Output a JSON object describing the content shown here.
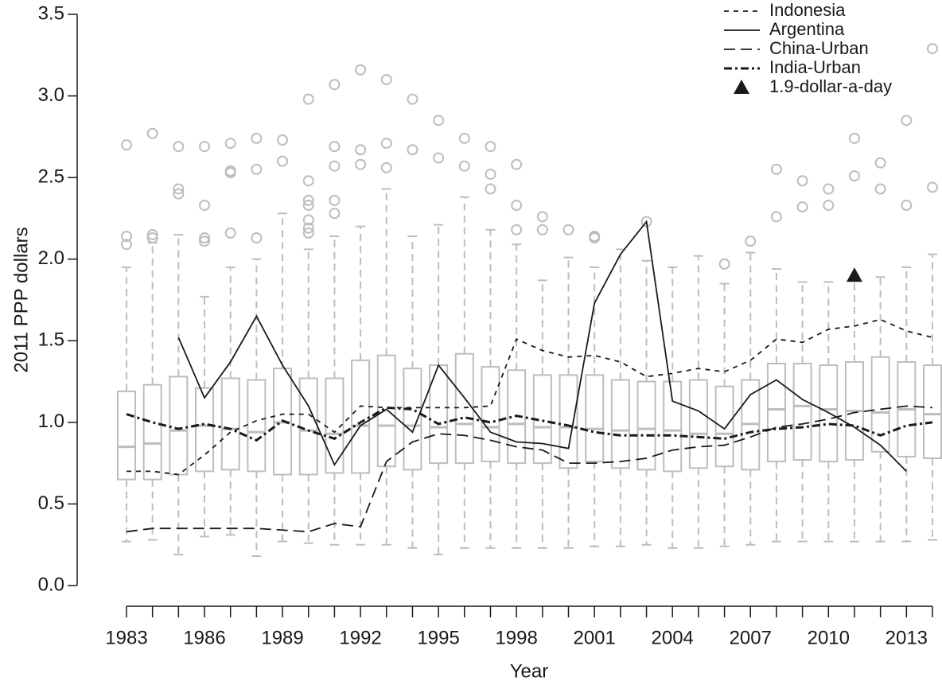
{
  "chart_data": {
    "type": "boxplot",
    "xlabel": "Year",
    "ylabel": "2011 PPP dollars",
    "xlim": [
      1983,
      2014
    ],
    "ylim": [
      0,
      3.5
    ],
    "xticks": [
      1983,
      1986,
      1989,
      1992,
      1995,
      1998,
      2001,
      2004,
      2007,
      2010,
      2013
    ],
    "yticks": [
      {
        "value": 0,
        "label": "0.0"
      },
      0.5,
      {
        "value": 1,
        "label": "1.0"
      },
      1.5,
      {
        "value": 2,
        "label": "2.0"
      },
      2.5,
      {
        "value": 3,
        "label": "3.0"
      },
      3.5
    ],
    "x": [
      1983,
      1984,
      1985,
      1986,
      1987,
      1988,
      1989,
      1990,
      1991,
      1992,
      1993,
      1994,
      1995,
      1996,
      1997,
      1998,
      1999,
      2000,
      2001,
      2002,
      2003,
      2004,
      2005,
      2006,
      2007,
      2008,
      2009,
      2010,
      2011,
      2012,
      2013,
      2014
    ],
    "boxes": {
      "color": "#bdbdbd",
      "whisker_low": [
        0.27,
        0.28,
        0.19,
        0.3,
        0.31,
        0.18,
        0.27,
        0.26,
        0.25,
        0.25,
        0.25,
        0.23,
        0.19,
        0.23,
        0.23,
        0.23,
        0.23,
        0.23,
        0.24,
        0.24,
        0.25,
        0.23,
        0.23,
        0.24,
        0.25,
        0.27,
        0.27,
        0.27,
        0.27,
        0.27,
        0.27,
        0.28
      ],
      "q1": [
        0.65,
        0.65,
        0.68,
        0.7,
        0.71,
        0.7,
        0.68,
        0.68,
        0.69,
        0.69,
        0.73,
        0.71,
        0.75,
        0.75,
        0.76,
        0.75,
        0.75,
        0.72,
        0.76,
        0.72,
        0.71,
        0.7,
        0.72,
        0.73,
        0.71,
        0.76,
        0.77,
        0.76,
        0.77,
        0.82,
        0.79,
        0.78
      ],
      "median": [
        0.85,
        0.87,
        0.95,
        0.98,
        0.96,
        0.94,
        1.0,
        0.95,
        0.93,
        0.98,
        0.98,
        0.98,
        0.97,
        0.99,
        0.97,
        0.99,
        0.97,
        0.97,
        0.96,
        0.95,
        0.96,
        0.95,
        0.93,
        0.93,
        0.99,
        1.08,
        1.1,
        1.08,
        1.07,
        1.06,
        1.08,
        1.05
      ],
      "q3": [
        1.19,
        1.23,
        1.28,
        1.21,
        1.27,
        1.26,
        1.33,
        1.27,
        1.27,
        1.38,
        1.41,
        1.33,
        1.35,
        1.42,
        1.34,
        1.32,
        1.29,
        1.29,
        1.29,
        1.26,
        1.25,
        1.25,
        1.26,
        1.22,
        1.26,
        1.36,
        1.36,
        1.35,
        1.37,
        1.4,
        1.37,
        1.35
      ],
      "whisker_high": [
        1.95,
        2.1,
        2.15,
        1.77,
        1.95,
        2.0,
        2.28,
        2.06,
        2.14,
        2.2,
        2.43,
        2.14,
        2.21,
        2.38,
        2.18,
        2.09,
        1.87,
        2.01,
        1.95,
        2.06,
        1.99,
        1.95,
        2.02,
        1.85,
        2.04,
        1.94,
        1.86,
        1.86,
        1.9,
        1.89,
        1.95,
        2.03
      ],
      "outliers": [
        [
          2.09,
          2.14,
          2.7
        ],
        [
          2.13,
          2.15,
          2.77
        ],
        [
          2.4,
          2.43,
          2.69
        ],
        [
          2.11,
          2.13,
          2.33,
          2.69
        ],
        [
          2.16,
          2.53,
          2.54,
          2.71
        ],
        [
          2.13,
          2.55,
          2.74
        ],
        [
          2.6,
          2.73
        ],
        [
          2.16,
          2.19,
          2.24,
          2.33,
          2.36,
          2.48,
          2.98
        ],
        [
          2.28,
          2.36,
          2.57,
          2.69,
          3.07
        ],
        [
          2.58,
          2.67,
          3.16
        ],
        [
          2.56,
          2.71,
          3.1
        ],
        [
          2.67,
          2.98
        ],
        [
          2.62,
          2.85
        ],
        [
          2.57,
          2.74
        ],
        [
          2.43,
          2.52,
          2.69
        ],
        [
          2.18,
          2.33,
          2.58
        ],
        [
          2.18,
          2.26
        ],
        [
          2.18
        ],
        [
          2.13,
          2.14
        ],
        [],
        [
          2.23
        ],
        [],
        [],
        [
          1.97
        ],
        [
          2.11
        ],
        [
          2.26,
          2.55
        ],
        [
          2.32,
          2.48
        ],
        [
          2.33,
          2.43
        ],
        [
          2.51,
          2.74
        ],
        [
          2.43,
          2.59
        ],
        [
          2.33,
          2.85
        ],
        [
          2.44,
          3.29
        ]
      ]
    },
    "series": [
      {
        "name": "Indonesia",
        "color": "#1a1a1a",
        "style": "short-dash",
        "values": [
          0.7,
          0.7,
          0.68,
          0.8,
          0.94,
          1.01,
          1.05,
          1.05,
          0.94,
          1.1,
          1.09,
          1.09,
          1.09,
          1.09,
          1.1,
          1.51,
          1.44,
          1.4,
          1.41,
          1.37,
          1.28,
          1.3,
          1.33,
          1.31,
          1.38,
          1.51,
          1.49,
          1.57,
          1.59,
          1.63,
          1.56,
          1.52
        ]
      },
      {
        "name": "Argentina",
        "color": "#1a1a1a",
        "style": "solid",
        "values": [
          null,
          null,
          1.52,
          1.15,
          1.37,
          1.65,
          1.35,
          1.1,
          0.74,
          0.98,
          1.08,
          0.94,
          1.35,
          1.15,
          0.94,
          0.88,
          0.87,
          0.84,
          1.73,
          2.03,
          2.23,
          1.13,
          1.07,
          0.96,
          1.17,
          1.26,
          1.14,
          1.06,
          0.97,
          0.86,
          0.7,
          null
        ]
      },
      {
        "name": "China-Urban",
        "color": "#1a1a1a",
        "style": "long-dash",
        "values": [
          0.33,
          0.35,
          0.35,
          0.35,
          0.35,
          0.35,
          0.34,
          0.33,
          0.38,
          0.36,
          0.76,
          0.88,
          0.93,
          0.92,
          0.89,
          0.85,
          0.83,
          0.75,
          0.75,
          0.76,
          0.78,
          0.83,
          0.85,
          0.86,
          0.91,
          0.97,
          0.99,
          1.02,
          1.06,
          1.08,
          1.1,
          1.09
        ]
      },
      {
        "name": "India-Urban",
        "color": "#1a1a1a",
        "style": "dash-dot",
        "values": [
          1.05,
          1.0,
          0.96,
          0.99,
          0.96,
          0.89,
          1.01,
          0.95,
          0.9,
          1.0,
          1.09,
          1.08,
          0.99,
          1.03,
          1.0,
          1.04,
          1.01,
          0.98,
          0.94,
          0.92,
          0.92,
          0.92,
          0.91,
          0.9,
          0.94,
          0.96,
          0.97,
          0.99,
          0.98,
          0.92,
          0.98,
          1.0
        ]
      }
    ],
    "markers": [
      {
        "name": "1.9-dollar-a-day",
        "color": "#1a1a1a",
        "x": 2011,
        "y": 1.9
      }
    ]
  }
}
